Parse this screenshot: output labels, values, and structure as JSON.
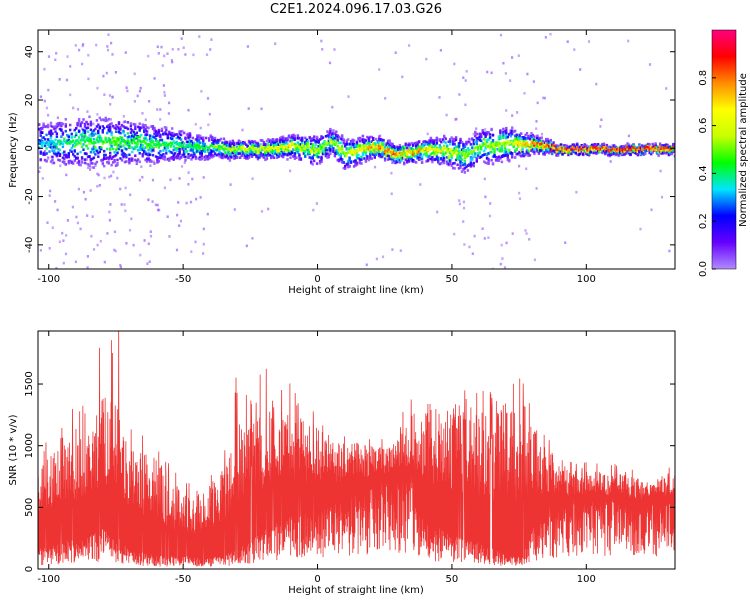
{
  "figure": {
    "title": "C2E1.2024.096.17.03.G26"
  },
  "chart_data": [
    {
      "type": "heatmap",
      "xlabel": "Height of straight line (km)",
      "ylabel": "Frequency (Hz)",
      "xlim": [
        -104,
        133
      ],
      "ylim": [
        -50,
        49
      ],
      "xticks": [
        -100,
        -50,
        0,
        50,
        100
      ],
      "yticks": [
        -40,
        -20,
        0,
        20,
        40
      ],
      "colorbar": {
        "label": "Normalized spectral amplitude",
        "range": [
          0.0,
          1.0
        ],
        "ticks": [
          0.0,
          0.2,
          0.4,
          0.6,
          0.8
        ],
        "colormap": [
          "#b08cff",
          "#6600ff",
          "#0000ff",
          "#00e5ff",
          "#00ff00",
          "#c8ff00",
          "#ffff00",
          "#ff8c00",
          "#ff0000",
          "#ff0080"
        ]
      },
      "ridge": {
        "description_values": "frequency center (Hz) vs height (km)",
        "x": [
          -104,
          -90,
          -75,
          -60,
          -45,
          -30,
          -20,
          -10,
          0,
          5,
          10,
          20,
          30,
          40,
          50,
          55,
          60,
          70,
          80,
          90,
          100,
          110,
          120,
          133
        ],
        "center": [
          2,
          3,
          3,
          2,
          1,
          0,
          0,
          1,
          0,
          3,
          -2,
          1,
          -2,
          0,
          -1,
          -3,
          1,
          2,
          2,
          0,
          0,
          0,
          0,
          0
        ],
        "halfwidth": [
          10,
          12,
          11,
          9,
          6,
          4,
          4,
          5,
          7,
          6,
          7,
          5,
          4,
          5,
          7,
          8,
          8,
          8,
          4,
          2,
          2,
          2,
          2,
          2
        ],
        "peak": [
          0.35,
          0.45,
          0.5,
          0.45,
          0.45,
          0.6,
          0.7,
          0.7,
          0.55,
          0.6,
          0.6,
          0.8,
          0.85,
          0.75,
          0.65,
          0.55,
          0.55,
          0.6,
          0.85,
          0.9,
          0.92,
          0.95,
          0.95,
          0.92
        ]
      }
    },
    {
      "type": "line",
      "xlabel": "Height of straight line (km)",
      "ylabel": "SNR (10 * v/v)",
      "xlim": [
        -104,
        133
      ],
      "ylim": [
        0,
        1930
      ],
      "xticks": [
        -100,
        -50,
        0,
        50,
        100
      ],
      "yticks": [
        0,
        500,
        1000,
        1500
      ],
      "color": "#ee3333",
      "envelope": {
        "x": [
          -104,
          -95,
          -85,
          -80,
          -75,
          -70,
          -60,
          -50,
          -42,
          -35,
          -30,
          -25,
          -20,
          -10,
          0,
          5,
          10,
          20,
          30,
          35,
          40,
          50,
          60,
          70,
          75,
          80,
          90,
          100,
          110,
          120,
          133
        ],
        "low": [
          150,
          200,
          250,
          300,
          250,
          150,
          100,
          100,
          80,
          100,
          150,
          200,
          300,
          400,
          450,
          500,
          500,
          600,
          650,
          650,
          350,
          250,
          200,
          100,
          100,
          300,
          450,
          500,
          500,
          480,
          520
        ],
        "high": [
          850,
          1000,
          1100,
          1400,
          1350,
          1050,
          900,
          650,
          600,
          900,
          1250,
          1200,
          1300,
          1250,
          1150,
          1100,
          1050,
          1000,
          1050,
          1250,
          1350,
          1350,
          1300,
          1350,
          1400,
          1200,
          850,
          800,
          780,
          740,
          760
        ],
        "spike_scale": [
          1.0,
          1.15,
          1.2,
          1.35,
          1.45,
          1.15,
          1.0,
          1.0,
          1.0,
          1.1,
          1.25,
          1.2,
          1.15,
          1.1,
          1.05,
          1.0,
          1.0,
          1.0,
          1.0,
          1.1,
          1.0,
          1.0,
          1.0,
          1.05,
          1.1,
          1.0,
          1.0,
          1.0,
          1.0,
          1.0,
          1.0
        ]
      },
      "max_peak": {
        "x": -74,
        "y": 1930
      }
    }
  ]
}
